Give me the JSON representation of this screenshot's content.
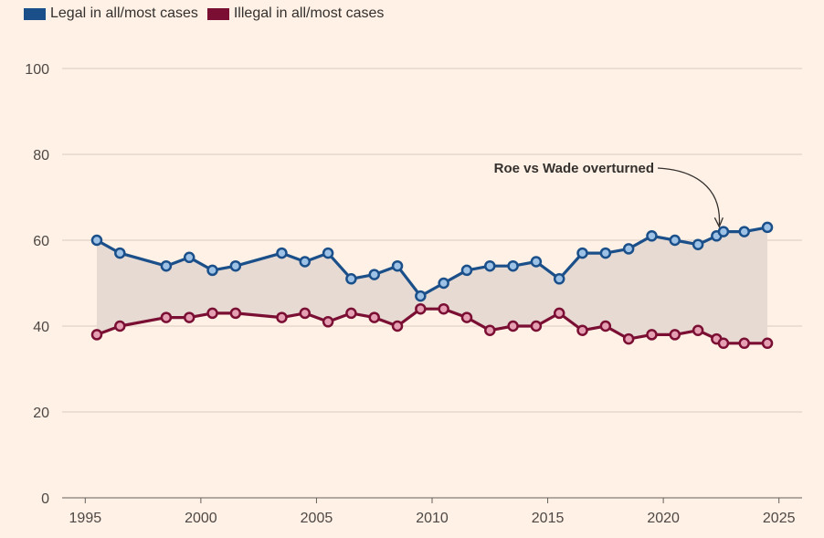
{
  "chart_data": {
    "type": "line",
    "series": [
      {
        "name": "Legal in all/most cases",
        "color": "#1a4f8a",
        "marker_fill": "#9ec1e6",
        "x": [
          1995.5,
          1996.5,
          1998.5,
          1999.5,
          2000.5,
          2001.5,
          2003.5,
          2004.5,
          2005.5,
          2006.5,
          2007.5,
          2008.5,
          2009.5,
          2010.5,
          2011.5,
          2012.5,
          2013.5,
          2014.5,
          2015.5,
          2016.5,
          2017.5,
          2018.5,
          2019.5,
          2020.5,
          2021.5,
          2022.3,
          2022.6,
          2023.5,
          2024.5
        ],
        "y": [
          60,
          57,
          54,
          56,
          53,
          54,
          57,
          55,
          57,
          51,
          52,
          54,
          47,
          50,
          53,
          54,
          54,
          55,
          51,
          57,
          57,
          58,
          61,
          60,
          59,
          61,
          62,
          62,
          63
        ]
      },
      {
        "name": "Illegal in all/most cases",
        "color": "#7a0f33",
        "marker_fill": "#e5a0b3",
        "x": [
          1995.5,
          1996.5,
          1998.5,
          1999.5,
          2000.5,
          2001.5,
          2003.5,
          2004.5,
          2005.5,
          2006.5,
          2007.5,
          2008.5,
          2009.5,
          2010.5,
          2011.5,
          2012.5,
          2013.5,
          2014.5,
          2015.5,
          2016.5,
          2017.5,
          2018.5,
          2019.5,
          2020.5,
          2021.5,
          2022.3,
          2022.6,
          2023.5,
          2024.5
        ],
        "y": [
          38,
          40,
          42,
          42,
          43,
          43,
          42,
          43,
          41,
          43,
          42,
          40,
          44,
          44,
          42,
          39,
          40,
          40,
          43,
          39,
          40,
          37,
          38,
          38,
          39,
          37,
          36,
          36,
          36
        ]
      }
    ],
    "xlim": [
      1994,
      2026
    ],
    "ylim": [
      0,
      100
    ],
    "x_ticks": [
      1995,
      2000,
      2005,
      2010,
      2015,
      2020,
      2025
    ],
    "y_ticks": [
      0,
      20,
      40,
      60,
      80,
      100
    ],
    "title": "",
    "xlabel": "",
    "ylabel": "",
    "grid": true,
    "legend": "top-left",
    "fill_between": true,
    "fill_color": "#e6dad3",
    "annotation": {
      "text": "Roe vs Wade overturned",
      "x": 2022.3,
      "y": 61
    }
  }
}
